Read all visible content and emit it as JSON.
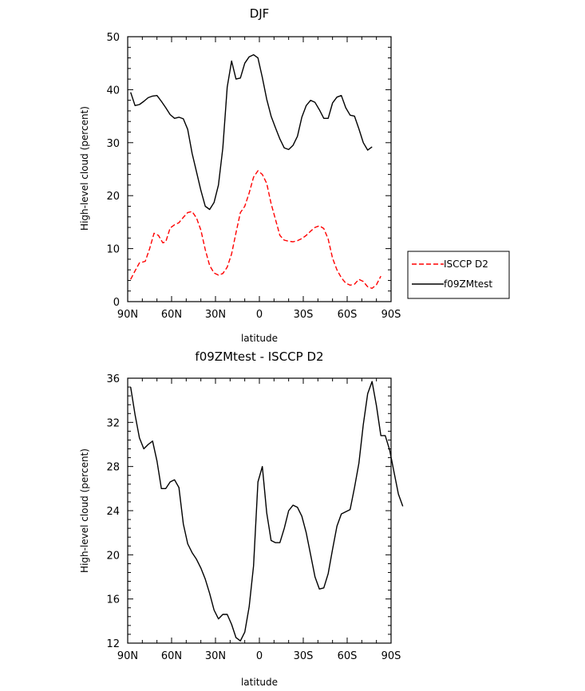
{
  "chart_data": [
    {
      "type": "line",
      "title": "DJF",
      "xlabel": "latitude",
      "ylabel": "High-level cloud (percent)",
      "xlim": [
        90,
        -90
      ],
      "ylim": [
        0,
        50
      ],
      "x_ticks": [
        90,
        60,
        30,
        0,
        -30,
        -60,
        -90
      ],
      "x_tick_labels": [
        "90N",
        "60N",
        "30N",
        "0",
        "30S",
        "60S",
        "90S"
      ],
      "y_ticks": [
        0,
        10,
        20,
        30,
        40,
        50
      ],
      "y_tick_labels": [
        "0",
        "10",
        "20",
        "30",
        "40",
        "50"
      ],
      "legend": [
        "ISCCP D2",
        "f09ZMtest"
      ],
      "legend_position": "right",
      "series": [
        {
          "name": "ISCCP D2",
          "color": "#ff0000",
          "dash": "dashed",
          "points": [
            [
              88,
              4.2
            ],
            [
              85,
              5.8
            ],
            [
              82,
              7.3
            ],
            [
              78,
              7.6
            ],
            [
              75,
              10.0
            ],
            [
              72,
              12.9
            ],
            [
              69,
              12.5
            ],
            [
              66,
              11.1
            ],
            [
              64,
              11.3
            ],
            [
              61,
              13.9
            ],
            [
              58,
              14.5
            ],
            [
              55,
              14.9
            ],
            [
              52,
              15.9
            ],
            [
              49,
              16.8
            ],
            [
              46,
              17.0
            ],
            [
              43,
              15.8
            ],
            [
              40,
              13.5
            ],
            [
              37,
              9.8
            ],
            [
              34,
              6.8
            ],
            [
              31,
              5.4
            ],
            [
              28,
              5.0
            ],
            [
              25,
              5.3
            ],
            [
              22,
              6.5
            ],
            [
              19,
              9.0
            ],
            [
              16,
              13.0
            ],
            [
              13,
              16.8
            ],
            [
              10,
              18.0
            ],
            [
              7,
              20.5
            ],
            [
              4,
              23.5
            ],
            [
              1,
              24.7
            ],
            [
              -2,
              24.0
            ],
            [
              -5,
              22.3
            ],
            [
              -8,
              18.5
            ],
            [
              -11,
              15.5
            ],
            [
              -14,
              12.5
            ],
            [
              -17,
              11.6
            ],
            [
              -20,
              11.4
            ],
            [
              -23,
              11.3
            ],
            [
              -26,
              11.5
            ],
            [
              -29,
              11.9
            ],
            [
              -32,
              12.5
            ],
            [
              -35,
              13.3
            ],
            [
              -38,
              14.0
            ],
            [
              -41,
              14.3
            ],
            [
              -44,
              13.8
            ],
            [
              -47,
              11.8
            ],
            [
              -50,
              8.2
            ],
            [
              -53,
              6.0
            ],
            [
              -56,
              4.5
            ],
            [
              -59,
              3.5
            ],
            [
              -62,
              3.1
            ],
            [
              -65,
              3.3
            ],
            [
              -68,
              4.2
            ],
            [
              -71,
              3.8
            ],
            [
              -74,
              2.8
            ],
            [
              -77,
              2.5
            ],
            [
              -80,
              3.2
            ],
            [
              -83,
              4.8
            ]
          ]
        },
        {
          "name": "f09ZMtest",
          "color": "#000000",
          "dash": "solid",
          "points": [
            [
              88,
              39.5
            ],
            [
              85,
              37.0
            ],
            [
              82,
              37.2
            ],
            [
              79,
              37.8
            ],
            [
              76,
              38.5
            ],
            [
              73,
              38.8
            ],
            [
              70,
              38.9
            ],
            [
              67,
              37.8
            ],
            [
              64,
              36.6
            ],
            [
              61,
              35.3
            ],
            [
              58,
              34.6
            ],
            [
              55,
              34.8
            ],
            [
              52,
              34.5
            ],
            [
              49,
              32.5
            ],
            [
              46,
              28.0
            ],
            [
              43,
              24.5
            ],
            [
              40,
              21.0
            ],
            [
              37,
              18.0
            ],
            [
              34,
              17.4
            ],
            [
              31,
              18.7
            ],
            [
              28,
              22.0
            ],
            [
              25,
              29.0
            ],
            [
              22,
              40.5
            ],
            [
              19,
              45.4
            ],
            [
              16,
              42.0
            ],
            [
              13,
              42.2
            ],
            [
              10,
              45.0
            ],
            [
              7,
              46.2
            ],
            [
              4,
              46.6
            ],
            [
              1,
              46.0
            ],
            [
              -2,
              42.3
            ],
            [
              -5,
              38.2
            ],
            [
              -8,
              35.0
            ],
            [
              -11,
              32.8
            ],
            [
              -14,
              30.7
            ],
            [
              -17,
              29.0
            ],
            [
              -20,
              28.7
            ],
            [
              -23,
              29.5
            ],
            [
              -26,
              31.2
            ],
            [
              -29,
              34.8
            ],
            [
              -32,
              37.0
            ],
            [
              -35,
              38.0
            ],
            [
              -38,
              37.6
            ],
            [
              -41,
              36.2
            ],
            [
              -44,
              34.6
            ],
            [
              -47,
              34.6
            ],
            [
              -50,
              37.5
            ],
            [
              -53,
              38.6
            ],
            [
              -56,
              38.9
            ],
            [
              -59,
              36.6
            ],
            [
              -62,
              35.2
            ],
            [
              -65,
              35.0
            ],
            [
              -68,
              32.6
            ],
            [
              -71,
              30.0
            ],
            [
              -74,
              28.6
            ],
            [
              -77,
              29.2
            ]
          ]
        }
      ]
    },
    {
      "type": "line",
      "title": "f09ZMtest - ISCCP D2",
      "xlabel": "latitude",
      "ylabel": "High-level cloud (percent)",
      "xlim": [
        90,
        -90
      ],
      "ylim": [
        12,
        36
      ],
      "x_ticks": [
        90,
        60,
        30,
        0,
        -30,
        -60,
        -90
      ],
      "x_tick_labels": [
        "90N",
        "60N",
        "30N",
        "0",
        "30S",
        "60S",
        "90S"
      ],
      "y_ticks": [
        12,
        16,
        20,
        24,
        28,
        32,
        36
      ],
      "y_tick_labels": [
        "12",
        "16",
        "20",
        "24",
        "28",
        "32",
        "36"
      ],
      "series": [
        {
          "name": "f09ZMtest - ISCCP D2",
          "color": "#000000",
          "dash": "solid",
          "points": [
            [
              88,
              35.2
            ],
            [
              85,
              32.7
            ],
            [
              82,
              30.6
            ],
            [
              79,
              29.6
            ],
            [
              76,
              30.0
            ],
            [
              73,
              30.3
            ],
            [
              70,
              28.5
            ],
            [
              67,
              26.0
            ],
            [
              64,
              26.0
            ],
            [
              61,
              26.6
            ],
            [
              58,
              26.8
            ],
            [
              55,
              26.1
            ],
            [
              52,
              22.8
            ],
            [
              49,
              21.0
            ],
            [
              46,
              20.2
            ],
            [
              43,
              19.6
            ],
            [
              40,
              18.8
            ],
            [
              37,
              17.8
            ],
            [
              34,
              16.5
            ],
            [
              31,
              15.0
            ],
            [
              28,
              14.2
            ],
            [
              25,
              14.6
            ],
            [
              22,
              14.6
            ],
            [
              19,
              13.7
            ],
            [
              16,
              12.5
            ],
            [
              13,
              12.2
            ],
            [
              10,
              13.0
            ],
            [
              7,
              15.3
            ],
            [
              4,
              19.0
            ],
            [
              1,
              26.6
            ],
            [
              -2,
              28.0
            ],
            [
              -5,
              23.8
            ],
            [
              -8,
              21.3
            ],
            [
              -11,
              21.1
            ],
            [
              -14,
              21.1
            ],
            [
              -17,
              22.4
            ],
            [
              -20,
              24.0
            ],
            [
              -23,
              24.5
            ],
            [
              -26,
              24.3
            ],
            [
              -29,
              23.5
            ],
            [
              -32,
              22.0
            ],
            [
              -35,
              20.0
            ],
            [
              -38,
              18.0
            ],
            [
              -41,
              16.9
            ],
            [
              -44,
              17.0
            ],
            [
              -47,
              18.3
            ],
            [
              -50,
              20.5
            ],
            [
              -53,
              22.6
            ],
            [
              -56,
              23.7
            ],
            [
              -59,
              23.9
            ],
            [
              -62,
              24.1
            ],
            [
              -65,
              26.1
            ],
            [
              -68,
              28.3
            ],
            [
              -71,
              31.8
            ],
            [
              -74,
              34.6
            ],
            [
              -77,
              35.7
            ],
            [
              -80,
              33.5
            ],
            [
              -83,
              30.8
            ],
            [
              -86,
              30.8
            ],
            [
              -89,
              29.5
            ],
            [
              -92,
              27.5
            ],
            [
              -95,
              25.5
            ],
            [
              -98,
              24.4
            ]
          ]
        }
      ]
    }
  ]
}
